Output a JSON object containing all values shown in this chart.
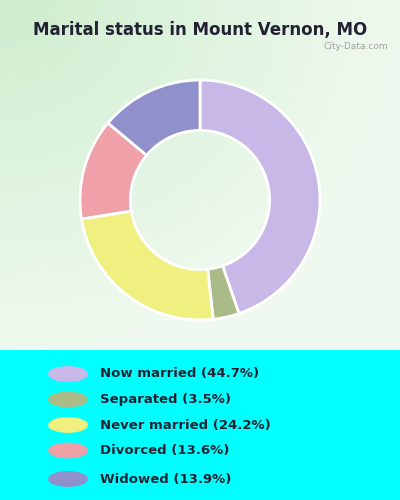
{
  "title": "Marital status in Mount Vernon, MO",
  "slices": [
    {
      "label": "Now married (44.7%)",
      "value": 44.7,
      "color": "#c8b8e8"
    },
    {
      "label": "Separated (3.5%)",
      "value": 3.5,
      "color": "#aabb88"
    },
    {
      "label": "Never married (24.2%)",
      "value": 24.2,
      "color": "#f0f080"
    },
    {
      "label": "Divorced (13.6%)",
      "value": 13.6,
      "color": "#f0a0a8"
    },
    {
      "label": "Widowed (13.9%)",
      "value": 13.9,
      "color": "#9090cc"
    }
  ],
  "legend_labels": [
    "Now married (44.7%)",
    "Separated (3.5%)",
    "Never married (24.2%)",
    "Divorced (13.6%)",
    "Widowed (13.9%)"
  ],
  "legend_colors": [
    "#c8b8e8",
    "#aabb88",
    "#f0f080",
    "#f0a0a8",
    "#9090cc"
  ],
  "bg_cyan": "#00ffff",
  "bg_chart": "#d0eed0",
  "title_color": "#222233",
  "title_fontsize": 12,
  "watermark": "City-Data.com",
  "startangle": 90
}
